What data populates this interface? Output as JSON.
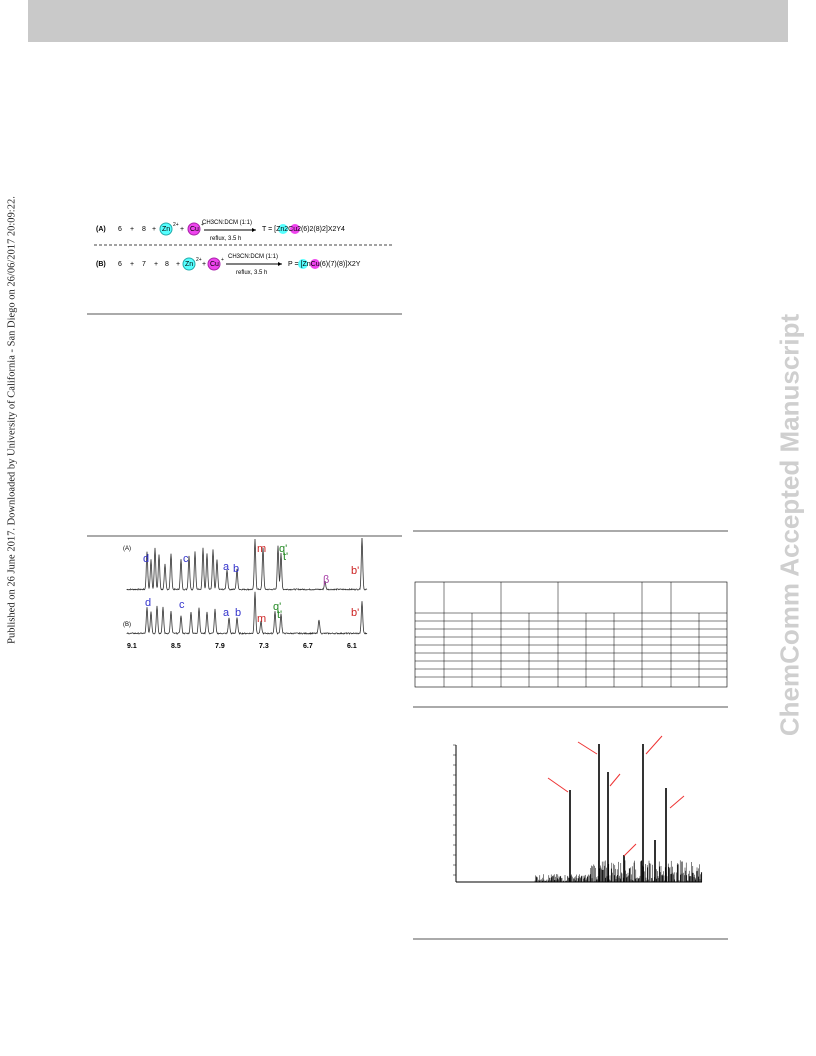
{
  "sidebar": "Published on 26 June 2017. Downloaded by University of California - San Diego on 26/06/2017 20:09:22.",
  "watermark": "ChemComm Accepted Manuscript",
  "scheme": {
    "a": {
      "label": "(A)",
      "r1": "6",
      "p1": "+",
      "r2": "8",
      "p2": "+",
      "zn": "Zn",
      "zn_charge": "2+",
      "p3": "+",
      "cu": "Cu",
      "cu_charge": "+",
      "solvent": "CH3CN:DCM (1:1)",
      "conditions": "reflux, 3.5 h",
      "product": "T = [Zn2Cu2(6)2(8)2]X2Y4"
    },
    "b": {
      "label": "(B)",
      "r1": "6",
      "p1": "+",
      "r2": "7",
      "p2": "+",
      "r3": "8",
      "p3": "+",
      "zn": "Zn",
      "zn_charge": "2+",
      "p4": "+",
      "cu": "Cu",
      "cu_charge": "+",
      "solvent": "CH3CN:DCM (1:1)",
      "conditions": "reflux, 3.5 h",
      "product": "P = [ZnCu(6)(7)(8)]X2Y"
    }
  },
  "nmr": {
    "trace_a": "(A)",
    "trace_b": "(B)",
    "labels_a": [
      "d",
      "c",
      "a",
      "b",
      "m",
      "q'",
      "t'",
      "β",
      "b'"
    ],
    "labels_b": [
      "d",
      "c",
      "a",
      "b",
      "m",
      "q'",
      "t'",
      "b'"
    ],
    "axis": [
      "9.1",
      "8.5",
      "7.9",
      "7.3",
      "6.7",
      "6.1"
    ]
  }
}
